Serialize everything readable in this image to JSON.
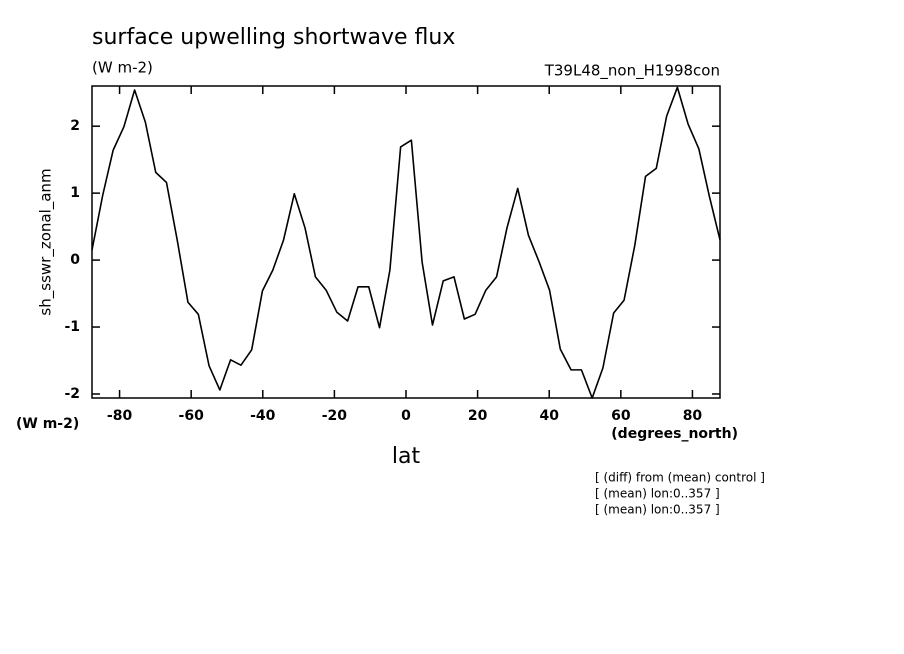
{
  "chart_data": {
    "type": "line",
    "title": "surface upwelling shortwave flux",
    "units": "(W m-2)",
    "run_label": "T39L48_non_H1998con",
    "y_label": "sh_sswr_zonal_anm",
    "y_units": "(W m-2)",
    "x_units": "(degrees_north)",
    "x_label": "lat",
    "notes": [
      "[ (diff) from (mean) control ]",
      "[ (mean) lon:0..357 ]",
      "[ (mean) lon:0..357 ]"
    ],
    "x": [
      -87.7,
      -84.7,
      -81.8,
      -78.8,
      -75.8,
      -72.8,
      -69.9,
      -66.9,
      -63.9,
      -60.9,
      -58.0,
      -55.0,
      -52.0,
      -49.0,
      -46.1,
      -43.1,
      -40.1,
      -37.2,
      -34.2,
      -31.2,
      -28.2,
      -25.3,
      -22.3,
      -19.3,
      -16.3,
      -13.4,
      -10.4,
      -7.4,
      -4.5,
      -1.5,
      1.5,
      4.5,
      7.4,
      10.4,
      13.4,
      16.3,
      19.3,
      22.3,
      25.3,
      28.2,
      31.2,
      34.2,
      37.2,
      40.1,
      43.1,
      46.1,
      49.0,
      52.0,
      55.0,
      58.0,
      60.9,
      63.9,
      66.9,
      69.9,
      72.8,
      75.8,
      78.8,
      81.8,
      84.7,
      87.7
    ],
    "series": [
      {
        "color": "#000000",
        "values": [
          0.15,
          0.97,
          1.64,
          1.99,
          2.54,
          2.06,
          1.31,
          1.16,
          0.3,
          -0.63,
          -0.81,
          -1.58,
          -1.94,
          -1.49,
          -1.57,
          -1.34,
          -0.46,
          -0.15,
          0.3,
          0.99,
          0.48,
          -0.25,
          -0.45,
          -0.78,
          -0.91,
          -0.4,
          -0.4,
          -1.01,
          -0.15,
          1.69,
          1.79,
          -0.03,
          -0.97,
          -0.31,
          -0.25,
          -0.88,
          -0.81,
          -0.45,
          -0.25,
          0.48,
          1.07,
          0.37,
          -0.03,
          -0.45,
          -1.33,
          -1.64,
          -1.64,
          -2.06,
          -1.61,
          -0.79,
          -0.6,
          0.22,
          1.25,
          1.37,
          2.15,
          2.58,
          2.03,
          1.66,
          0.96,
          0.3
        ]
      }
    ],
    "xlim": [
      -87.7,
      87.7
    ],
    "xticks": [
      -80,
      -60,
      -40,
      -20,
      0,
      20,
      40,
      60,
      80
    ],
    "ylim": [
      -2.06,
      2.6
    ],
    "yticks": [
      -2,
      -1,
      0,
      1,
      2
    ]
  }
}
